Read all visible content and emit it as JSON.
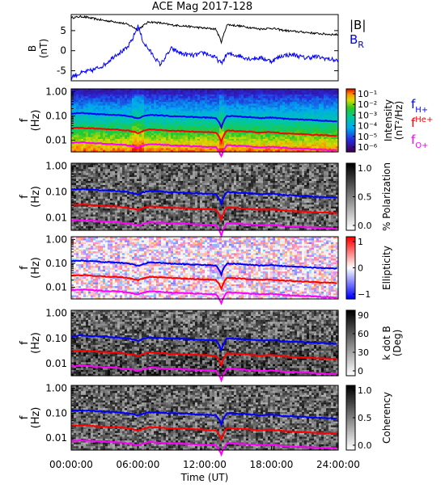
{
  "title": "ACE Mag 2017-128",
  "colors": {
    "b_total": "#000000",
    "b_r": "#0000ff",
    "f_h": "#0000ff",
    "f_he": "#ff0000",
    "f_o": "#ff00ff"
  },
  "chart_data": [
    {
      "type": "line",
      "ylabel": "B",
      "yunit": "(nT)",
      "x_ticks": [
        "00:00:00",
        "06:00:00",
        "12:00:00",
        "18:00:00",
        "24:00:00"
      ],
      "xlabel": "Time (UT)",
      "ylim": [
        -7.5,
        9
      ],
      "y_ticks": [
        "5",
        "0",
        "-5"
      ],
      "legend": [
        "|B|",
        "B_R"
      ],
      "x_hours": [
        0,
        1,
        2,
        3,
        4,
        5,
        5.5,
        6,
        6.5,
        7,
        8,
        9,
        10,
        11,
        12,
        13,
        13.5,
        14,
        15,
        16,
        17,
        18,
        19,
        20,
        21,
        22,
        23,
        24
      ],
      "series": [
        {
          "name": "|B|",
          "values": [
            8.2,
            8.5,
            8.0,
            7.5,
            7.2,
            6.6,
            6.0,
            5.2,
            6.3,
            7.2,
            6.9,
            6.4,
            6.2,
            5.9,
            5.6,
            5.4,
            2.2,
            6.5,
            6.2,
            5.8,
            5.4,
            5.6,
            5.1,
            4.8,
            4.6,
            4.3,
            4.1,
            4.0
          ]
        },
        {
          "name": "B_R",
          "values": [
            -6.5,
            -5.5,
            -4.8,
            -3.5,
            -1.0,
            0.5,
            2.8,
            6.2,
            2.0,
            0.2,
            -3.5,
            0.5,
            -0.8,
            -1.2,
            -0.5,
            -1.8,
            -3.2,
            -0.8,
            -1.2,
            -2.0,
            -1.8,
            -2.6,
            -1.2,
            -1.0,
            -1.8,
            -1.5,
            -2.0,
            -2.5
          ]
        }
      ]
    },
    {
      "type": "heatmap",
      "ylabel": "f",
      "yunit": "(Hz)",
      "y_ticks": [
        "1.00",
        "0.10",
        "0.01"
      ],
      "colorbar_label": "Intensity",
      "colorbar_unit": "(nT²/Hz)",
      "colorbar_ticks": [
        "10⁻¹",
        "10⁻²",
        "10⁻³",
        "10⁻⁴",
        "10⁻⁵",
        "10⁻⁶"
      ],
      "legend": [
        "f_H+",
        "f_He+",
        "f_O+"
      ]
    },
    {
      "type": "heatmap",
      "ylabel": "f",
      "yunit": "(Hz)",
      "y_ticks": [
        "1.00",
        "0.10",
        "0.01"
      ],
      "colorbar_label": "% Polarization",
      "colorbar_ticks": [
        "1.0",
        "0.5",
        "0.0"
      ]
    },
    {
      "type": "heatmap",
      "ylabel": "f",
      "yunit": "(Hz)",
      "y_ticks": [
        "1.00",
        "0.10",
        "0.01"
      ],
      "colorbar_label": "Ellipticity",
      "colorbar_ticks": [
        "1",
        "0",
        "−1"
      ]
    },
    {
      "type": "heatmap",
      "ylabel": "f",
      "yunit": "(Hz)",
      "y_ticks": [
        "1.00",
        "0.10",
        "0.01"
      ],
      "colorbar_label": "k dot B",
      "colorbar_unit": "(Deg)",
      "colorbar_ticks": [
        "90",
        "60",
        "30",
        "0"
      ]
    },
    {
      "type": "heatmap",
      "ylabel": "f",
      "yunit": "(Hz)",
      "y_ticks": [
        "1.00",
        "0.10",
        "0.01"
      ],
      "colorbar_label": "Coherency",
      "colorbar_ticks": [
        "1.0",
        "0.5",
        "0.0"
      ]
    }
  ],
  "gyrofreq": {
    "x_hours": [
      0,
      1,
      2,
      3,
      4,
      5,
      5.5,
      6,
      6.5,
      7,
      8,
      9,
      10,
      11,
      12,
      13,
      13.5,
      14,
      15,
      16,
      17,
      18,
      19,
      20,
      21,
      22,
      23,
      24
    ],
    "f_h_hz": [
      0.125,
      0.13,
      0.122,
      0.114,
      0.11,
      0.1,
      0.092,
      0.08,
      0.096,
      0.11,
      0.105,
      0.098,
      0.095,
      0.09,
      0.086,
      0.083,
      0.034,
      0.1,
      0.095,
      0.089,
      0.082,
      0.086,
      0.078,
      0.073,
      0.07,
      0.066,
      0.063,
      0.061
    ]
  }
}
